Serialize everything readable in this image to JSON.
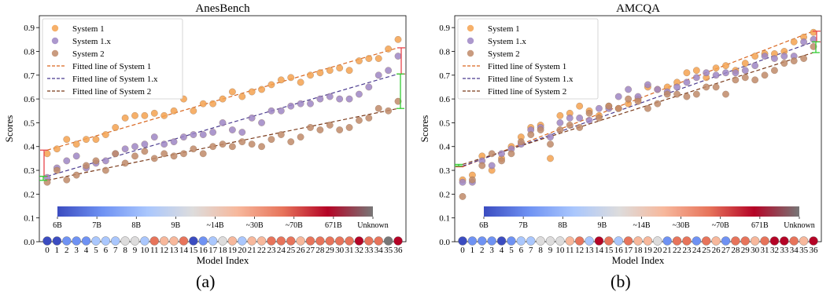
{
  "figure": {
    "sub_labels": [
      "(a)",
      "(b)"
    ]
  },
  "colors": {
    "system1": "#f4a250",
    "system1x": "#9d86c4",
    "system2": "#c08a68",
    "fit1": "#d9661f",
    "fit1x": "#4b3b8f",
    "fit2": "#7a3a1a",
    "gap_red": "#e8454a",
    "gap_green": "#33cc33",
    "colorbar": [
      "#3b4cc0",
      "#6f92f3",
      "#aac7fd",
      "#dddcdc",
      "#f7b89c",
      "#e7745b",
      "#b40426",
      "#777777"
    ]
  },
  "chart_data": [
    {
      "type": "scatter",
      "title": "AnesBench",
      "xlabel": "Model Index",
      "ylabel": "Scores",
      "ylim": [
        0,
        0.95
      ],
      "yticks": [
        "0.0",
        "0.1",
        "0.2",
        "0.3",
        "0.4",
        "0.5",
        "0.6",
        "0.7",
        "0.8",
        "0.9"
      ],
      "x": [
        0,
        1,
        2,
        3,
        4,
        5,
        6,
        7,
        8,
        9,
        10,
        11,
        12,
        13,
        14,
        15,
        16,
        17,
        18,
        19,
        20,
        21,
        22,
        23,
        24,
        25,
        26,
        27,
        28,
        29,
        30,
        31,
        32,
        33,
        34,
        35,
        36
      ],
      "series": [
        {
          "name": "System 1",
          "values": [
            0.37,
            0.39,
            0.43,
            0.41,
            0.43,
            0.43,
            0.45,
            0.48,
            0.52,
            0.53,
            0.53,
            0.54,
            0.53,
            0.55,
            0.6,
            0.55,
            0.58,
            0.58,
            0.6,
            0.63,
            0.61,
            0.63,
            0.64,
            0.66,
            0.68,
            0.69,
            0.67,
            0.7,
            0.71,
            0.72,
            0.73,
            0.72,
            0.76,
            0.77,
            0.77,
            0.81,
            0.85
          ]
        },
        {
          "name": "System 1.x",
          "values": [
            0.27,
            0.31,
            0.34,
            0.36,
            0.31,
            0.33,
            0.34,
            0.37,
            0.39,
            0.4,
            0.41,
            0.44,
            0.41,
            0.42,
            0.44,
            0.45,
            0.45,
            0.46,
            0.5,
            0.47,
            0.46,
            0.52,
            0.5,
            0.55,
            0.55,
            0.57,
            0.58,
            0.58,
            0.6,
            0.61,
            0.6,
            0.6,
            0.62,
            0.65,
            0.7,
            0.72,
            0.78
          ]
        },
        {
          "name": "System 2",
          "values": [
            0.25,
            0.3,
            0.26,
            0.28,
            0.32,
            0.34,
            0.3,
            0.37,
            0.33,
            0.36,
            0.38,
            0.35,
            0.37,
            0.36,
            0.37,
            0.39,
            0.37,
            0.4,
            0.41,
            0.4,
            0.42,
            0.41,
            0.4,
            0.43,
            0.45,
            0.42,
            0.44,
            0.48,
            0.47,
            0.49,
            0.47,
            0.48,
            0.51,
            0.52,
            0.56,
            0.55,
            0.59
          ]
        }
      ],
      "fits": [
        {
          "name": "Fitted line of System 1",
          "start": 0.385,
          "end": 0.815
        },
        {
          "name": "Fitted line of System 1.x",
          "start": 0.275,
          "end": 0.705
        },
        {
          "name": "Fitted line of System 2",
          "start": 0.258,
          "end": 0.56
        }
      ],
      "index_colors": [
        0,
        0,
        1,
        1,
        1,
        2,
        2,
        2,
        3,
        3,
        2,
        5,
        4,
        4,
        5,
        0,
        1,
        2,
        3,
        4,
        2,
        4,
        4,
        5,
        5,
        5,
        4,
        5,
        5,
        5,
        5,
        5,
        6,
        5,
        5,
        7,
        6
      ],
      "colorbar_labels": [
        "6B",
        "7B",
        "8B",
        "9B",
        "~14B",
        "~30B",
        "~70B",
        "671B",
        "Unknown"
      ]
    },
    {
      "type": "scatter",
      "title": "AMCQA",
      "xlabel": "Model Index",
      "ylabel": "Scores",
      "ylim": [
        0,
        0.95
      ],
      "yticks": [
        "0.0",
        "0.1",
        "0.2",
        "0.3",
        "0.4",
        "0.5",
        "0.6",
        "0.7",
        "0.8",
        "0.9"
      ],
      "x": [
        0,
        1,
        2,
        3,
        4,
        5,
        6,
        7,
        8,
        9,
        10,
        11,
        12,
        13,
        14,
        15,
        16,
        17,
        18,
        19,
        20,
        21,
        22,
        23,
        24,
        25,
        26,
        27,
        28,
        29,
        30,
        31,
        32,
        33,
        34,
        35,
        36
      ],
      "series": [
        {
          "name": "System 1",
          "values": [
            0.26,
            0.28,
            0.36,
            0.3,
            0.35,
            0.4,
            0.44,
            0.48,
            0.49,
            0.35,
            0.53,
            0.54,
            0.57,
            0.55,
            0.53,
            0.57,
            0.56,
            0.58,
            0.6,
            0.65,
            0.64,
            0.65,
            0.67,
            0.71,
            0.72,
            0.69,
            0.73,
            0.74,
            0.72,
            0.75,
            0.78,
            0.79,
            0.79,
            0.8,
            0.84,
            0.86,
            0.88
          ]
        },
        {
          "name": "System 1.x",
          "values": [
            0.25,
            0.25,
            0.34,
            0.32,
            0.37,
            0.39,
            0.41,
            0.47,
            0.48,
            0.44,
            0.5,
            0.52,
            0.52,
            0.51,
            0.56,
            0.56,
            0.61,
            0.64,
            0.61,
            0.66,
            0.64,
            0.63,
            0.65,
            0.67,
            0.69,
            0.71,
            0.7,
            0.71,
            0.71,
            0.72,
            0.74,
            0.78,
            0.77,
            0.78,
            0.78,
            0.84,
            0.85
          ]
        },
        {
          "name": "System 2",
          "values": [
            0.19,
            0.26,
            0.32,
            0.37,
            0.34,
            0.37,
            0.42,
            0.45,
            0.47,
            0.41,
            0.47,
            0.49,
            0.48,
            0.54,
            0.52,
            0.57,
            0.56,
            0.6,
            0.59,
            0.56,
            0.58,
            0.62,
            0.62,
            0.61,
            0.62,
            0.65,
            0.65,
            0.62,
            0.68,
            0.69,
            0.68,
            0.7,
            0.72,
            0.75,
            0.76,
            0.77,
            0.82
          ]
        }
      ],
      "fits": [
        {
          "name": "Fitted line of System 1",
          "start": 0.315,
          "end": 0.885
        },
        {
          "name": "Fitted line of System 1.x",
          "start": 0.318,
          "end": 0.84
        },
        {
          "name": "Fitted line of System 2",
          "start": 0.325,
          "end": 0.795
        }
      ],
      "index_colors": [
        0,
        1,
        1,
        1,
        0,
        1,
        2,
        2,
        3,
        3,
        3,
        4,
        5,
        2,
        6,
        5,
        2,
        5,
        4,
        4,
        3,
        1,
        5,
        5,
        1,
        5,
        4,
        1,
        5,
        5,
        4,
        5,
        6,
        6,
        5,
        4,
        6
      ],
      "colorbar_labels": [
        "6B",
        "7B",
        "8B",
        "9B",
        "~14B",
        "~30B",
        "~70B",
        "671B",
        "Unknown"
      ]
    }
  ]
}
